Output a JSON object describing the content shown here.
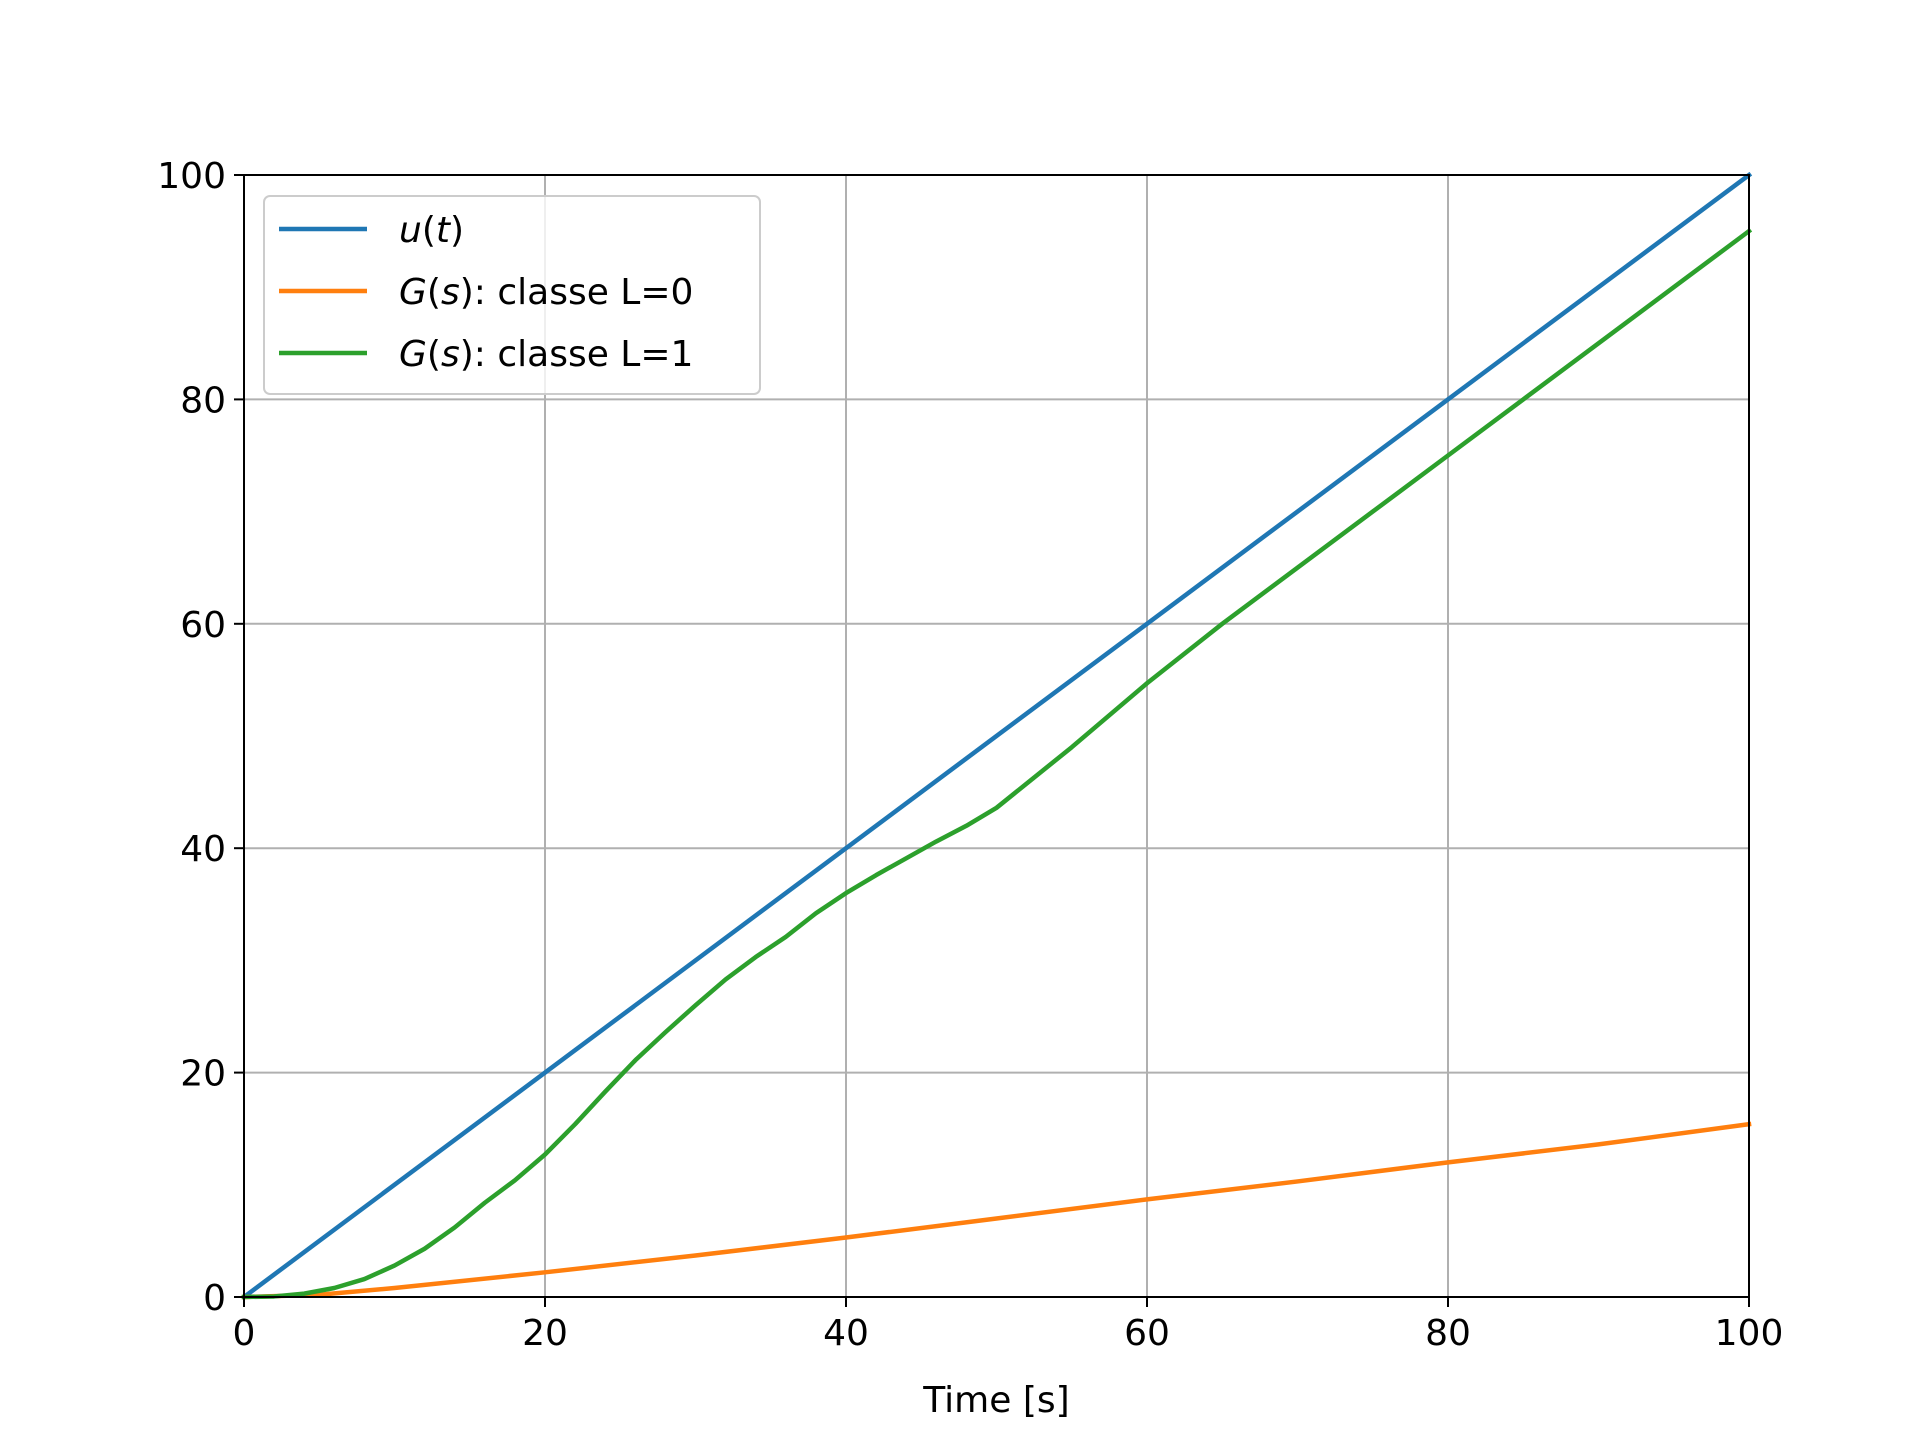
{
  "chart_data": {
    "type": "line",
    "title": "",
    "xlabel": "Time [s]",
    "ylabel": "",
    "xlim": [
      0,
      100
    ],
    "ylim": [
      0,
      100
    ],
    "xticks": [
      0,
      20,
      40,
      60,
      80,
      100
    ],
    "yticks": [
      0,
      20,
      40,
      60,
      80,
      100
    ],
    "xtick_labels": [
      "0",
      "20",
      "40",
      "60",
      "80",
      "100"
    ],
    "ytick_labels": [
      "0",
      "20",
      "40",
      "60",
      "80",
      "100"
    ],
    "grid": true,
    "legend_position": "top-left",
    "series": [
      {
        "name": "u(t)",
        "legend": {
          "func": "u",
          "arg": "t",
          "suffix": ""
        },
        "color": "#1f77b4",
        "x": [
          0,
          100
        ],
        "y": [
          0,
          100
        ]
      },
      {
        "name": "G(s): classe L=0",
        "legend": {
          "func": "G",
          "arg": "s",
          "suffix": ": classe L=0"
        },
        "color": "#ff7f0e",
        "x": [
          0,
          5,
          10,
          20,
          30,
          40,
          50,
          60,
          70,
          80,
          90,
          100
        ],
        "y": [
          0,
          0.2,
          0.8,
          2.2,
          3.7,
          5.3,
          7.0,
          8.7,
          10.3,
          12.0,
          13.6,
          15.4
        ]
      },
      {
        "name": "G(s): classe L=1",
        "legend": {
          "func": "G",
          "arg": "s",
          "suffix": ": classe L=1"
        },
        "color": "#2ca02c",
        "x": [
          0,
          2,
          4,
          6,
          8,
          10,
          12,
          14,
          16,
          18,
          20,
          22,
          24,
          26,
          28,
          30,
          32,
          34,
          36,
          38,
          40,
          42,
          44,
          46,
          48,
          50,
          55,
          60,
          65,
          70,
          75,
          80,
          85,
          90,
          95,
          100
        ],
        "y": [
          0,
          0.05,
          0.3,
          0.8,
          1.6,
          2.8,
          4.3,
          6.2,
          8.4,
          10.4,
          12.7,
          15.4,
          18.3,
          21.1,
          23.6,
          26.0,
          28.3,
          30.3,
          32.1,
          34.2,
          36.0,
          37.6,
          39.1,
          40.6,
          42.0,
          43.6,
          49.0,
          54.7,
          60.0,
          65.0,
          70.0,
          75.0,
          80.0,
          85.0,
          90.0,
          95.0
        ]
      }
    ]
  }
}
